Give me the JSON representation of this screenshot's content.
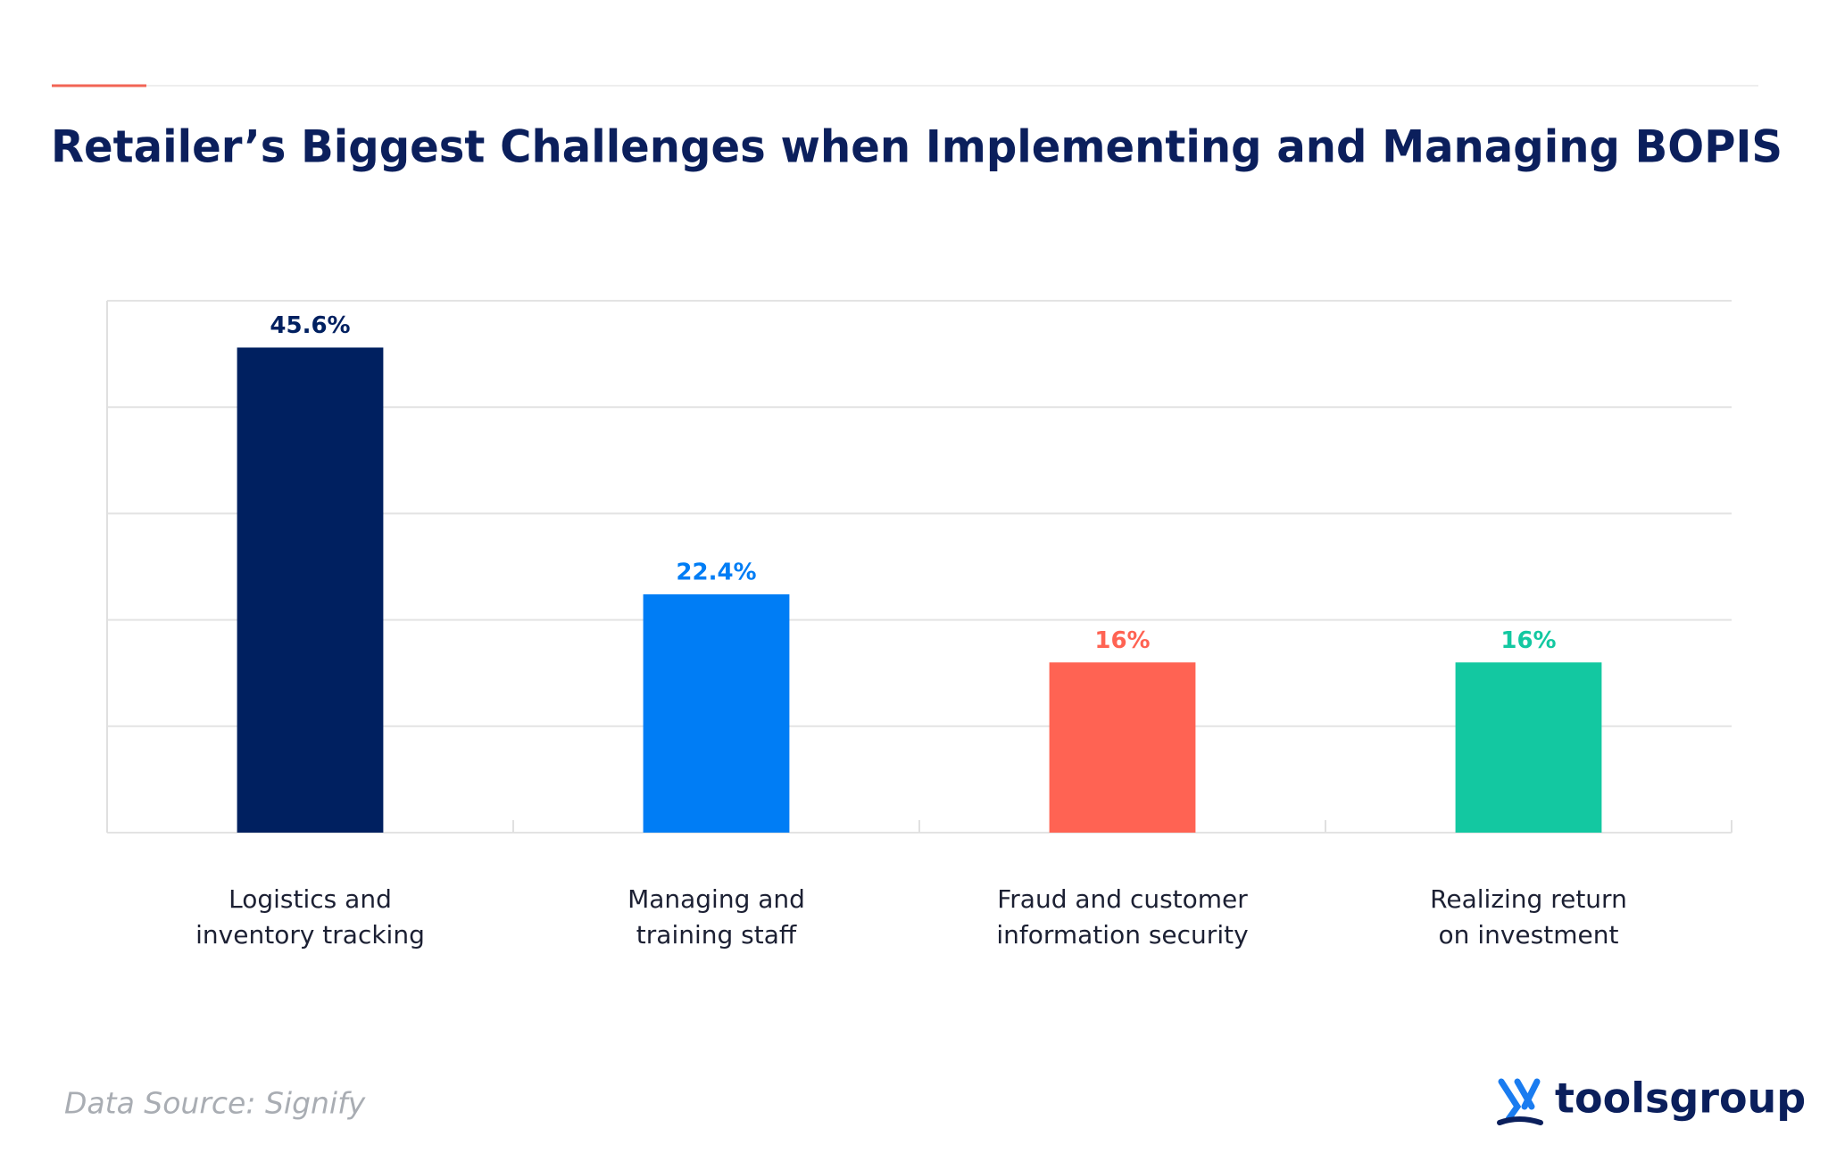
{
  "chart_data": {
    "type": "bar",
    "title": "Retailer’s Biggest Challenges when Implementing and Managing BOPIS",
    "categories": [
      "Logistics and\ninventory tracking",
      "Managing and\ntraining staff",
      "Fraud and customer\ninformation security",
      "Realizing return\non investment"
    ],
    "values": [
      45.6,
      22.4,
      16,
      16
    ],
    "value_labels": [
      "45.6%",
      "22.4%",
      "16%",
      "16%"
    ],
    "colors": [
      "#002060",
      "#007df5",
      "#ff6353",
      "#13c8a1"
    ],
    "ylim": [
      0,
      50
    ],
    "yticks": [
      0,
      10,
      20,
      30,
      40,
      50
    ],
    "grid": true,
    "source": "Data Source: Signify",
    "logo": "toolsgroup"
  }
}
